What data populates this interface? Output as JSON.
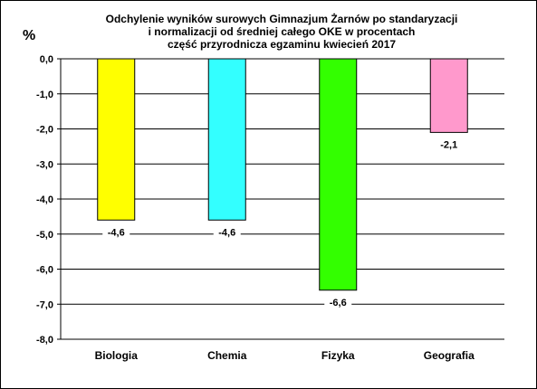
{
  "chart_data": {
    "type": "bar",
    "title_lines": [
      "Odchylenie wyników surowych Gimnazjum Żarnów po standaryzacji",
      "i normalizacji od średniej całego OKE w procentach",
      "część przyrodnicza egzaminu kwiecień 2017"
    ],
    "unit_label": "%",
    "categories": [
      "Biologia",
      "Chemia",
      "Fizyka",
      "Geografia"
    ],
    "values": [
      -4.6,
      -4.6,
      -6.6,
      -2.1
    ],
    "value_labels": [
      "-4,6",
      "-4,6",
      "-6,6",
      "-2,1"
    ],
    "colors": [
      "#ffff00",
      "#33ffff",
      "#33ff00",
      "#ff99cc"
    ],
    "ylim": [
      -8,
      0
    ],
    "yticks": [
      0,
      -1,
      -2,
      -3,
      -4,
      -5,
      -6,
      -7,
      -8
    ],
    "ytick_labels": [
      "0,0",
      "-1,0",
      "-2,0",
      "-3,0",
      "-4,0",
      "-5,0",
      "-6,0",
      "-7,0",
      "-8,0"
    ],
    "grid": true,
    "legend": "none"
  }
}
